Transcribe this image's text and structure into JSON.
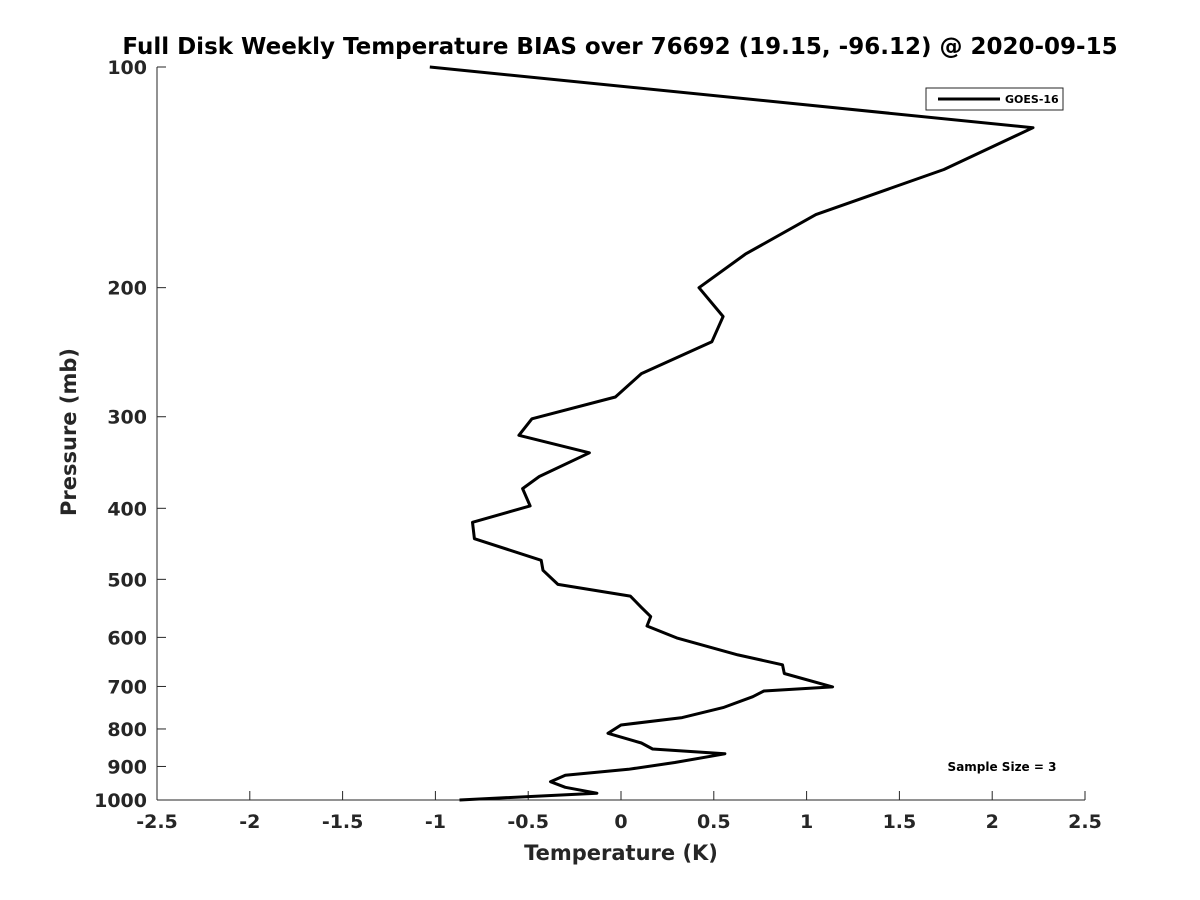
{
  "chart_data": {
    "type": "line",
    "title": "Full Disk Weekly Temperature BIAS over 76692 (19.15, -96.12) @ 2020-09-15",
    "xlabel": "Temperature (K)",
    "ylabel": "Pressure (mb)",
    "xlim": [
      -2.5,
      2.5
    ],
    "ylim": [
      100,
      1000
    ],
    "y_scale": "log",
    "y_reversed": true,
    "grid": false,
    "x_ticks": [
      -2.5,
      -2,
      -1.5,
      -1,
      -0.5,
      0,
      0.5,
      1,
      1.5,
      2,
      2.5
    ],
    "x_tick_labels": [
      "-2.5",
      "-2",
      "-1.5",
      "-1",
      "-0.5",
      "0",
      "0.5",
      "1",
      "1.5",
      "2",
      "2.5"
    ],
    "y_ticks": [
      100,
      200,
      300,
      400,
      500,
      600,
      700,
      800,
      900,
      1000
    ],
    "y_tick_labels": [
      "100",
      "200",
      "300",
      "400",
      "500",
      "600",
      "700",
      "800",
      "900",
      "1000"
    ],
    "legend": {
      "position": "top-right",
      "entries": [
        "GOES-16"
      ]
    },
    "annotation": "Sample Size = 3",
    "series": [
      {
        "name": "GOES-16",
        "color": "#000000",
        "points": [
          {
            "x": -1.03,
            "y": 100
          },
          {
            "x": 2.22,
            "y": 121
          },
          {
            "x": 1.74,
            "y": 138
          },
          {
            "x": 1.05,
            "y": 159
          },
          {
            "x": 0.67,
            "y": 180
          },
          {
            "x": 0.42,
            "y": 200
          },
          {
            "x": 0.55,
            "y": 219
          },
          {
            "x": 0.49,
            "y": 237
          },
          {
            "x": 0.11,
            "y": 262
          },
          {
            "x": -0.03,
            "y": 282
          },
          {
            "x": -0.48,
            "y": 302
          },
          {
            "x": -0.55,
            "y": 318
          },
          {
            "x": -0.17,
            "y": 336
          },
          {
            "x": -0.44,
            "y": 362
          },
          {
            "x": -0.53,
            "y": 376
          },
          {
            "x": -0.49,
            "y": 397
          },
          {
            "x": -0.8,
            "y": 418
          },
          {
            "x": -0.79,
            "y": 440
          },
          {
            "x": -0.43,
            "y": 471
          },
          {
            "x": -0.42,
            "y": 486
          },
          {
            "x": -0.34,
            "y": 508
          },
          {
            "x": 0.05,
            "y": 527
          },
          {
            "x": 0.11,
            "y": 546
          },
          {
            "x": 0.16,
            "y": 562
          },
          {
            "x": 0.14,
            "y": 579
          },
          {
            "x": 0.3,
            "y": 601
          },
          {
            "x": 0.63,
            "y": 634
          },
          {
            "x": 0.87,
            "y": 654
          },
          {
            "x": 0.88,
            "y": 672
          },
          {
            "x": 1.14,
            "y": 701
          },
          {
            "x": 0.77,
            "y": 710
          },
          {
            "x": 0.71,
            "y": 723
          },
          {
            "x": 0.55,
            "y": 748
          },
          {
            "x": 0.33,
            "y": 772
          },
          {
            "x": 0.0,
            "y": 790
          },
          {
            "x": -0.07,
            "y": 811
          },
          {
            "x": 0.11,
            "y": 836
          },
          {
            "x": 0.17,
            "y": 852
          },
          {
            "x": 0.56,
            "y": 865
          },
          {
            "x": 0.29,
            "y": 889
          },
          {
            "x": 0.04,
            "y": 908
          },
          {
            "x": -0.3,
            "y": 925
          },
          {
            "x": -0.38,
            "y": 944
          },
          {
            "x": -0.3,
            "y": 961
          },
          {
            "x": -0.13,
            "y": 979
          },
          {
            "x": -0.87,
            "y": 1000
          }
        ]
      }
    ]
  }
}
